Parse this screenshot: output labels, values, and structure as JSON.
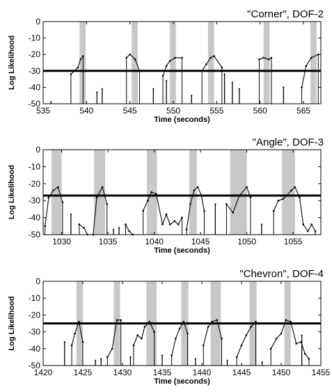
{
  "chart_data": [
    {
      "type": "line",
      "title": "\"Corner\", DOF-2",
      "xlabel": "Time (seconds)",
      "ylabel": "Log Likelihood",
      "xlim": [
        535,
        567
      ],
      "ylim": [
        -50,
        0
      ],
      "xticks": [
        535,
        540,
        545,
        550,
        555,
        560,
        565
      ],
      "yticks": [
        0,
        -10,
        -20,
        -30,
        -40,
        -50
      ],
      "threshold": -30,
      "shaded_intervals": [
        [
          539.2,
          539.9
        ],
        [
          545.2,
          545.9
        ],
        [
          549.6,
          550.3
        ],
        [
          554.0,
          554.7
        ],
        [
          560.4,
          561.1
        ],
        [
          565.8,
          566.5
        ]
      ],
      "segments": [
        {
          "x": [
            538.2,
            538.6,
            539.0,
            539.3,
            539.6
          ],
          "y": [
            -32,
            -30,
            -28,
            -23,
            -21
          ]
        },
        {
          "x": [
            544.6,
            545.0,
            545.6,
            546.1
          ],
          "y": [
            -22,
            -20,
            -23,
            -30
          ]
        },
        {
          "x": [
            548.8,
            549.2,
            549.6,
            550.2,
            551.0
          ],
          "y": [
            -33,
            -27,
            -24,
            -22,
            -22
          ]
        },
        {
          "x": [
            553.3,
            553.8,
            554.3,
            554.7,
            555.6
          ],
          "y": [
            -30,
            -26,
            -22,
            -21,
            -28
          ]
        },
        {
          "x": [
            559.9,
            560.4,
            561.0,
            561.3
          ],
          "y": [
            -23,
            -22,
            -23,
            -22
          ]
        },
        {
          "x": [
            564.8,
            565.3,
            565.9,
            566.7
          ],
          "y": [
            -40,
            -27,
            -22,
            -20
          ]
        }
      ],
      "spikes": [
        {
          "x": 535.9,
          "y": -49
        },
        {
          "x": 541.2,
          "y": -43
        },
        {
          "x": 541.8,
          "y": -41
        },
        {
          "x": 547.7,
          "y": -41
        },
        {
          "x": 549.2,
          "y": -36
        },
        {
          "x": 552.1,
          "y": -45
        },
        {
          "x": 555.9,
          "y": -32
        },
        {
          "x": 556.8,
          "y": -37
        },
        {
          "x": 557.6,
          "y": -41
        },
        {
          "x": 562.7,
          "y": -40
        }
      ]
    },
    {
      "type": "line",
      "title": "\"Angle\", DOF-3",
      "xlabel": "Time (seconds)",
      "ylabel": "Log Likelihood",
      "xlim": [
        1028,
        1058
      ],
      "ylim": [
        -50,
        0
      ],
      "xticks": [
        1030,
        1035,
        1040,
        1045,
        1050,
        1055
      ],
      "yticks": [
        0,
        -10,
        -20,
        -30,
        -40,
        -50
      ],
      "threshold": -27,
      "shaded_intervals": [
        [
          1028.9,
          1030.0
        ],
        [
          1033.5,
          1034.7
        ],
        [
          1039.2,
          1040.3
        ],
        [
          1043.8,
          1044.6
        ],
        [
          1048.2,
          1050.0
        ],
        [
          1053.8,
          1055.2
        ]
      ],
      "segments": [
        {
          "x": [
            1028.2,
            1028.6,
            1029.1,
            1029.6,
            1030.1
          ],
          "y": [
            -45,
            -28,
            -24,
            -22,
            -31
          ]
        },
        {
          "x": [
            1031.9,
            1032.4,
            1032.8
          ],
          "y": [
            -44,
            -46,
            -50
          ]
        },
        {
          "x": [
            1033.4,
            1033.8,
            1034.4,
            1034.9
          ],
          "y": [
            -50,
            -28,
            -22,
            -32
          ]
        },
        {
          "x": [
            1036.9,
            1037.3,
            1037.7
          ],
          "y": [
            -44,
            -48,
            -50
          ]
        },
        {
          "x": [
            1038.8,
            1039.3,
            1039.7,
            1040.2,
            1040.9,
            1041.3,
            1041.7,
            1042.2,
            1042.6,
            1043.0
          ],
          "y": [
            -36,
            -30,
            -25,
            -26,
            -44,
            -38,
            -44,
            -42,
            -44,
            -40
          ]
        },
        {
          "x": [
            1043.5,
            1043.9,
            1044.3,
            1044.7,
            1045.1,
            1045.4
          ],
          "y": [
            -47,
            -32,
            -24,
            -22,
            -27,
            -36
          ]
        },
        {
          "x": [
            1047.8,
            1048.5,
            1049.2,
            1050.0,
            1050.4
          ],
          "y": [
            -32,
            -37,
            -27,
            -22,
            -28
          ]
        },
        {
          "x": [
            1052.9,
            1053.4,
            1053.9,
            1054.3,
            1054.8,
            1055.2,
            1055.7,
            1056.1,
            1056.6,
            1057.0,
            1057.4
          ],
          "y": [
            -36,
            -30,
            -29,
            -27,
            -24,
            -22,
            -28,
            -44,
            -48,
            -44,
            -48
          ]
        }
      ],
      "spikes": [
        {
          "x": 1031.0,
          "y": -38
        },
        {
          "x": 1035.6,
          "y": -47
        },
        {
          "x": 1036.2,
          "y": -46
        },
        {
          "x": 1046.6,
          "y": -32
        },
        {
          "x": 1051.6,
          "y": -44
        }
      ]
    },
    {
      "type": "line",
      "title": "\"Chevron\", DOF-4",
      "xlabel": "Time (seconds)",
      "ylabel": "Log Likelihood",
      "xlim": [
        1420,
        1455
      ],
      "ylim": [
        -50,
        0
      ],
      "xticks": [
        1420,
        1425,
        1430,
        1435,
        1440,
        1445,
        1450,
        1455
      ],
      "yticks": [
        0,
        -10,
        -20,
        -30,
        -40,
        -50
      ],
      "threshold": -25,
      "shaded_intervals": [
        [
          1424.2,
          1425.0
        ],
        [
          1428.9,
          1429.7
        ],
        [
          1433.0,
          1434.3
        ],
        [
          1437.4,
          1438.3
        ],
        [
          1441.1,
          1442.4
        ],
        [
          1446.0,
          1446.9
        ],
        [
          1450.4,
          1451.2
        ]
      ],
      "segments": [
        {
          "x": [
            1423.6,
            1424.0,
            1424.5,
            1425.0
          ],
          "y": [
            -38,
            -31,
            -24,
            -36
          ]
        },
        {
          "x": [
            1428.1,
            1428.7,
            1429.3,
            1429.8
          ],
          "y": [
            -45,
            -40,
            -23,
            -23
          ]
        },
        {
          "x": [
            1431.4,
            1431.9,
            1432.4,
            1432.8,
            1433.4,
            1434.0
          ],
          "y": [
            -38,
            -32,
            -34,
            -27,
            -24,
            -30
          ]
        },
        {
          "x": [
            1436.2,
            1436.7,
            1437.2,
            1437.7,
            1438.2
          ],
          "y": [
            -44,
            -34,
            -28,
            -24,
            -31
          ]
        },
        {
          "x": [
            1440.2,
            1440.8,
            1441.3,
            1441.9,
            1442.5
          ],
          "y": [
            -38,
            -27,
            -24,
            -23,
            -34
          ]
        },
        {
          "x": [
            1444.4,
            1445.0,
            1445.6,
            1446.2,
            1446.8
          ],
          "y": [
            -45,
            -38,
            -32,
            -27,
            -24
          ]
        },
        {
          "x": [
            1448.7,
            1449.4,
            1450.0,
            1450.6,
            1451.2,
            1451.9,
            1452.5,
            1453.0,
            1453.5
          ],
          "y": [
            -40,
            -34,
            -31,
            -23,
            -24,
            -37,
            -36,
            -43,
            -46
          ]
        }
      ],
      "spikes": [
        {
          "x": 1422.7,
          "y": -36
        },
        {
          "x": 1426.6,
          "y": -47
        },
        {
          "x": 1427.3,
          "y": -46
        },
        {
          "x": 1431.0,
          "y": -45
        },
        {
          "x": 1435.0,
          "y": -44
        },
        {
          "x": 1439.2,
          "y": -46
        },
        {
          "x": 1443.2,
          "y": -47
        },
        {
          "x": 1447.6,
          "y": -48
        },
        {
          "x": 1452.6,
          "y": -32
        }
      ]
    }
  ]
}
